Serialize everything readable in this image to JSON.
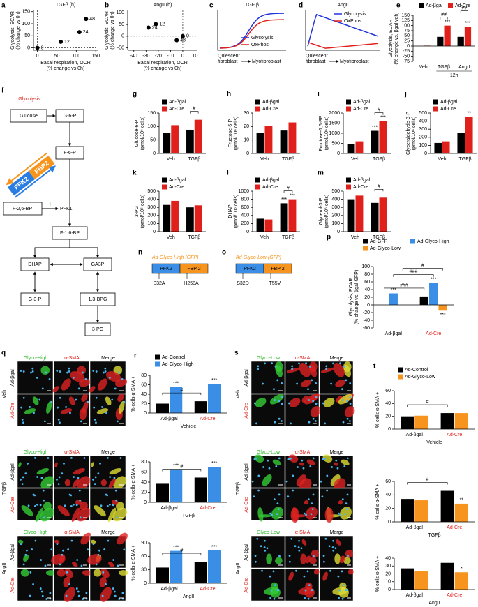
{
  "chart_data": [
    {
      "panel": "a",
      "type": "scatter",
      "title": "TGFβ (h)",
      "x_label": [
        "Basal respiration, OCR",
        "(% change vs 0h)"
      ],
      "y_label": [
        "Glycolysis, ECAR",
        "(% change vs 0h)"
      ],
      "x": [
        0,
        60,
        108,
        125
      ],
      "values": [
        0,
        25,
        65,
        120
      ],
      "point_labels": [
        "0",
        "12",
        "24",
        "48"
      ],
      "color": "#000000",
      "xlim": [
        -10,
        155
      ],
      "xticks": [
        0,
        50,
        100,
        150
      ],
      "ylim": [
        -10,
        155
      ],
      "yticks": [
        0,
        50,
        100,
        150
      ]
    },
    {
      "panel": "b",
      "type": "scatter",
      "title": "AngII (h)",
      "x_label": [
        "Basal respiration, OCR",
        "(% change vs 0h)"
      ],
      "y_label": [
        "Glycolysis, ECAR",
        "(% change vs 0h)"
      ],
      "x": [
        0,
        -22,
        -28,
        -5
      ],
      "values": [
        0,
        52,
        37,
        -17
      ],
      "point_labels": [
        "0",
        "12",
        "24",
        "48"
      ],
      "color": "#000000",
      "xlim": [
        -45,
        12
      ],
      "xticks": [
        -40,
        -30,
        -20,
        -10,
        0,
        10
      ],
      "ylim": [
        -60,
        110
      ],
      "yticks": [
        -50,
        0,
        50,
        100
      ]
    },
    {
      "panel": "c",
      "type": "schematic",
      "title": "TGF β",
      "series": [
        {
          "name": "Glycolysis",
          "color": "#2233dd",
          "trend": "rise"
        },
        {
          "name": "OxPhos",
          "color": "#e0201b",
          "trend": "rise"
        }
      ],
      "x_start": [
        "Quiescent",
        "fibroblast"
      ],
      "x_end": "Myofibroblast"
    },
    {
      "panel": "d",
      "type": "schematic",
      "title": "AngII",
      "series": [
        {
          "name": "Glycolysis",
          "color": "#2233dd",
          "trend": "rise-fall"
        },
        {
          "name": "OxPhos",
          "color": "#e0201b",
          "trend": "dip"
        }
      ],
      "x_start": [
        "Quiescent",
        "fibroblast"
      ],
      "x_end": "Myofibroblast"
    },
    {
      "panel": "e",
      "type": "bar",
      "categories": [
        "Veh",
        "TGFβ",
        "AngII"
      ],
      "category_colors": [
        "#000000",
        "#000000",
        "#000000"
      ],
      "series": [
        {
          "name": "Ad-βgal",
          "color": "#000000",
          "values": [
            0,
            45,
            45
          ]
        },
        {
          "name": "Ad-Cre",
          "color": "#e0201b",
          "values": [
            2,
            100,
            95
          ]
        }
      ],
      "group_label": {
        "text": "12h",
        "categories": [
          1,
          2
        ]
      },
      "y_label": [
        "Glycolysis, ECAR",
        "(% change vs. βgal veh)"
      ],
      "ylim": [
        -75,
        150
      ],
      "yticks": [
        -75,
        -50,
        -25,
        0,
        25,
        50,
        75,
        100,
        125,
        150
      ],
      "annotations": [
        {
          "text": "***",
          "series": 1,
          "category": 1
        },
        {
          "text": "***",
          "series": 1,
          "category": 2
        },
        {
          "text": "##",
          "from": [
            0,
            1
          ],
          "to": [
            1,
            1
          ]
        },
        {
          "text": "##",
          "from": [
            0,
            2
          ],
          "to": [
            1,
            2
          ]
        }
      ]
    },
    {
      "panel": "g",
      "type": "bar",
      "categories": [
        "Veh",
        "TGFβ"
      ],
      "category_colors": [
        "#000000",
        "#000000"
      ],
      "series": [
        {
          "name": "Ad-βgal",
          "color": "#000000",
          "values": [
            75,
            88
          ]
        },
        {
          "name": "Ad-Cre",
          "color": "#e0201b",
          "values": [
            105,
            125
          ]
        }
      ],
      "y_label": [
        "Glucose-6-P",
        "(pmol/10⁶ cells)"
      ],
      "ylim": [
        0,
        150
      ],
      "yticks": [
        0,
        50,
        100,
        150
      ],
      "annotations": [
        {
          "text": "#",
          "from": [
            0,
            1
          ],
          "to": [
            1,
            1
          ]
        }
      ]
    },
    {
      "panel": "h",
      "type": "bar",
      "categories": [
        "Veh",
        "TGFβ"
      ],
      "category_colors": [
        "#000000",
        "#000000"
      ],
      "series": [
        {
          "name": "Ad-βgal",
          "color": "#000000",
          "values": [
            15.5,
            17
          ]
        },
        {
          "name": "Ad-Cre",
          "color": "#e0201b",
          "values": [
            20.5,
            23
          ]
        }
      ],
      "y_label": [
        "Fructose-6-P",
        "(pmol/10⁶ cells)"
      ],
      "ylim": [
        0,
        30
      ],
      "yticks": [
        0,
        10,
        20,
        30
      ],
      "annotations": []
    },
    {
      "panel": "i",
      "type": "bar",
      "categories": [
        "Veh",
        "TGFβ"
      ],
      "category_colors": [
        "#000000",
        "#000000"
      ],
      "series": [
        {
          "name": "Ad-βgal",
          "color": "#000000",
          "values": [
            480,
            1120
          ]
        },
        {
          "name": "Ad-Cre",
          "color": "#e0201b",
          "values": [
            600,
            1600
          ]
        }
      ],
      "y_label": [
        "Fructose-1,6-BP",
        "(pmol/10⁶ cells)"
      ],
      "ylim": [
        0,
        2000
      ],
      "yticks": [
        0,
        500,
        1000,
        1500,
        2000
      ],
      "annotations": [
        {
          "text": "***",
          "series": 0,
          "category": 1
        },
        {
          "text": "***",
          "series": 1,
          "category": 1
        },
        {
          "text": "#",
          "from": [
            0,
            1
          ],
          "to": [
            1,
            1
          ]
        }
      ]
    },
    {
      "panel": "j",
      "type": "bar",
      "categories": [
        "Veh",
        "TGFβ"
      ],
      "category_colors": [
        "#000000",
        "#000000"
      ],
      "series": [
        {
          "name": "Ad-βgal",
          "color": "#000000",
          "values": [
            130,
            250
          ]
        },
        {
          "name": "Ad-Cre",
          "color": "#e0201b",
          "values": [
            150,
            455
          ]
        }
      ],
      "y_label": [
        "Glyceraldehyde-3-P",
        "(pmol/10⁶ cells)"
      ],
      "ylim": [
        0,
        500
      ],
      "yticks": [
        0,
        100,
        200,
        300,
        400,
        500
      ],
      "annotations": [
        {
          "text": "**",
          "series": 1,
          "category": 1
        }
      ]
    },
    {
      "panel": "k",
      "type": "bar",
      "categories": [
        "Veh",
        "TGFβ"
      ],
      "category_colors": [
        "#000000",
        "#000000"
      ],
      "series": [
        {
          "name": "Ad-βgal",
          "color": "#000000",
          "values": [
            330,
            300
          ]
        },
        {
          "name": "Ad-Cre",
          "color": "#e0201b",
          "values": [
            380,
            325
          ]
        }
      ],
      "y_label": [
        "3-PG",
        "(pmol/10⁶ cells)"
      ],
      "ylim": [
        0,
        500
      ],
      "yticks": [
        0,
        100,
        200,
        300,
        400,
        500
      ],
      "annotations": []
    },
    {
      "panel": "l",
      "type": "bar",
      "categories": [
        "Veh",
        "TGFβ"
      ],
      "category_colors": [
        "#000000",
        "#000000"
      ],
      "series": [
        {
          "name": "Ad-βgal",
          "color": "#000000",
          "values": [
            320,
            700
          ]
        },
        {
          "name": "Ad-Cre",
          "color": "#e0201b",
          "values": [
            300,
            800
          ]
        }
      ],
      "y_label": [
        "DHAP",
        "(pmol/10⁶ cells)"
      ],
      "ylim": [
        0,
        1000
      ],
      "yticks": [
        0,
        200,
        400,
        600,
        800,
        1000
      ],
      "annotations": [
        {
          "text": "***",
          "series": 0,
          "category": 1
        },
        {
          "text": "***",
          "series": 1,
          "category": 1
        },
        {
          "text": "#",
          "from": [
            0,
            1
          ],
          "to": [
            1,
            1
          ]
        }
      ]
    },
    {
      "panel": "m",
      "type": "bar",
      "categories": [
        "Veh",
        "TGFβ"
      ],
      "category_colors": [
        "#000000",
        "#000000"
      ],
      "series": [
        {
          "name": "Ad-βgal",
          "color": "#000000",
          "values": [
            400,
            355
          ]
        },
        {
          "name": "Ad-Cre",
          "color": "#e0201b",
          "values": [
            445,
            420
          ]
        }
      ],
      "y_label": [
        "Glycerol-3-P",
        "(pmol/10⁶ cells)"
      ],
      "ylim": [
        0,
        500
      ],
      "yticks": [
        0,
        100,
        200,
        300,
        400,
        500
      ],
      "annotations": [
        {
          "text": "#",
          "from": [
            0,
            1
          ],
          "to": [
            1,
            1
          ]
        }
      ]
    },
    {
      "panel": "p",
      "type": "bar",
      "categories": [
        "Ad-βgal",
        "Ad-Cre"
      ],
      "category_colors": [
        "#000000",
        "#e0201b"
      ],
      "series": [
        {
          "name": "Ad-GFP",
          "color": "#000000",
          "values": [
            0,
            22
          ]
        },
        {
          "name": "Ad-Glyco-High",
          "color": "#3a8ee6",
          "values": [
            30,
            57
          ]
        },
        {
          "name": "Ad-Glyco-Low",
          "color": "#f7941d",
          "values": [
            0,
            -15
          ]
        }
      ],
      "y_label": [
        "Glycolysis, ECAR",
        "(% change vs. βgal GFP)"
      ],
      "ylim": [
        -60,
        100
      ],
      "yticks": [
        -60,
        -40,
        -20,
        0,
        20,
        40,
        60,
        80,
        100
      ],
      "annotations": [
        {
          "text": "***",
          "series": 1,
          "category": 0
        },
        {
          "text": "***",
          "series": 1,
          "category": 1
        },
        {
          "text": "***",
          "series": 2,
          "category": 1
        },
        {
          "text": "###",
          "from": [
            0,
            0
          ],
          "to": [
            0,
            1
          ]
        },
        {
          "text": "###",
          "from": [
            1,
            0
          ],
          "to": [
            1,
            1
          ]
        },
        {
          "text": "#",
          "from": [
            2,
            0
          ],
          "to": [
            2,
            1
          ]
        }
      ]
    },
    {
      "panel": "r",
      "type": "bar",
      "categories": [
        "Ad-βgal",
        "Ad-Cre"
      ],
      "category_colors": [
        "#000000",
        "#e0201b"
      ],
      "series": [
        {
          "name": "Ad-Control",
          "color": "#000000",
          "values": [
            20,
            25
          ]
        },
        {
          "name": "Ad-Glyco-High",
          "color": "#3a8ee6",
          "values": [
            55,
            62
          ]
        }
      ],
      "x_label": "Vehicle",
      "y_label": [
        "% cells α-SMA +"
      ],
      "ylim": [
        0,
        80
      ],
      "yticks": [
        0,
        20,
        40,
        60,
        80
      ],
      "annotations": [
        {
          "text": "***",
          "series": 1,
          "category": 0
        },
        {
          "text": "***",
          "series": 1,
          "category": 1
        },
        {
          "text": "#",
          "from": [
            0,
            0
          ],
          "to": [
            0,
            1
          ]
        }
      ]
    },
    {
      "type": "bar",
      "categories": [
        "Ad-βgal",
        "Ad-Cre"
      ],
      "category_colors": [
        "#000000",
        "#e0201b"
      ],
      "series": [
        {
          "color": "#000000",
          "values": [
            38,
            49
          ]
        },
        {
          "color": "#3a8ee6",
          "values": [
            65,
            70
          ]
        }
      ],
      "x_label": "TGFβ",
      "y_label": [
        "% cells α-SMA +"
      ],
      "ylim": [
        0,
        80
      ],
      "yticks": [
        0,
        20,
        40,
        60,
        80
      ],
      "annotations": [
        {
          "text": "***",
          "series": 1,
          "category": 0
        },
        {
          "text": "***",
          "series": 1,
          "category": 1
        },
        {
          "text": "#",
          "from": [
            0,
            0
          ],
          "to": [
            0,
            1
          ]
        }
      ]
    },
    {
      "type": "bar",
      "categories": [
        "Ad-βgal",
        "Ad-Cre"
      ],
      "category_colors": [
        "#000000",
        "#e0201b"
      ],
      "series": [
        {
          "color": "#000000",
          "values": [
            35,
            48
          ]
        },
        {
          "color": "#3a8ee6",
          "values": [
            72,
            73
          ]
        }
      ],
      "x_label": "AngII",
      "y_label": [
        "% cells α-SMA +"
      ],
      "ylim": [
        0,
        90
      ],
      "yticks": [
        0,
        30,
        60,
        90
      ],
      "annotations": [
        {
          "text": "***",
          "series": 1,
          "category": 0
        },
        {
          "text": "***",
          "series": 1,
          "category": 1
        },
        {
          "text": "#",
          "from": [
            0,
            0
          ],
          "to": [
            0,
            1
          ]
        }
      ]
    },
    {
      "panel": "t",
      "type": "bar",
      "categories": [
        "Ad-βgal",
        "Ad-Cre"
      ],
      "category_colors": [
        "#000000",
        "#e0201b"
      ],
      "series": [
        {
          "name": "Ad-Control",
          "color": "#000000",
          "values": [
            20,
            25
          ]
        },
        {
          "name": "Ad-Glyco-Low",
          "color": "#f7941d",
          "values": [
            21,
            25
          ]
        }
      ],
      "x_label": "Vehicle",
      "y_label": [
        "% cells α-SMA +"
      ],
      "ylim": [
        0,
        60
      ],
      "yticks": [
        0,
        20,
        40,
        60
      ],
      "annotations": [
        {
          "text": "#",
          "from": [
            0,
            0
          ],
          "to": [
            0,
            1
          ]
        }
      ]
    },
    {
      "type": "bar",
      "categories": [
        "Ad-βgal",
        "Ad-Cre"
      ],
      "category_colors": [
        "#000000",
        "#e0201b"
      ],
      "series": [
        {
          "color": "#000000",
          "values": [
            34,
            46
          ]
        },
        {
          "color": "#f7941d",
          "values": [
            32,
            27
          ]
        }
      ],
      "x_label": "TGFβ",
      "y_label": [
        "% cells α-SMA +"
      ],
      "ylim": [
        0,
        60
      ],
      "yticks": [
        0,
        20,
        40,
        60
      ],
      "annotations": [
        {
          "text": "**",
          "series": 1,
          "category": 1
        },
        {
          "text": "#",
          "from": [
            0,
            0
          ],
          "to": [
            0,
            1
          ]
        }
      ]
    },
    {
      "type": "bar",
      "categories": [
        "Ad-βgal",
        "Ad-Cre"
      ],
      "category_colors": [
        "#000000",
        "#e0201b"
      ],
      "series": [
        {
          "color": "#000000",
          "values": [
            27,
            34
          ]
        },
        {
          "color": "#f7941d",
          "values": [
            24,
            22
          ]
        }
      ],
      "x_label": "AngII",
      "y_label": [
        "% cells α-SMA +"
      ],
      "ylim": [
        0,
        40
      ],
      "yticks": [
        0,
        10,
        20,
        30,
        40
      ],
      "annotations": [
        {
          "text": "*",
          "series": 1,
          "category": 1
        }
      ]
    }
  ],
  "diagram": {
    "panel": "f",
    "title": "Glycolysis",
    "nodes": [
      "Glucose",
      "G-6-P",
      "F-6-P",
      "PFK2",
      "FBP2",
      "F-2,6-BP",
      "+",
      "PFK1",
      "F-1,6-BP",
      "DHAP",
      "GA3P",
      "G-3-P",
      "1,3-BPG",
      "3-PG"
    ]
  },
  "constructs": [
    {
      "panel": "n",
      "title": "Ad-Glyco-High (GFP)",
      "domains": [
        "PFK2",
        "FBP 2"
      ],
      "mutations": [
        "S32A",
        "H258A"
      ]
    },
    {
      "panel": "o",
      "title": "Ad-Glyco-Low (GFP)",
      "domains": [
        "PFK2",
        "FBP 2"
      ],
      "mutations": [
        "S32D",
        "T55V"
      ]
    }
  ],
  "micrographs": [
    {
      "panel": "q",
      "channels": [
        "Glyco-High",
        "α-SMA",
        "Merge"
      ],
      "rows": [
        "Ad-βgal",
        "Ad-Cre"
      ],
      "conditions": [
        "Veh",
        "TGFβ",
        "AngII"
      ]
    },
    {
      "panel": "s",
      "channels": [
        "Glyco-Low",
        "α-SMA",
        "Merge"
      ],
      "rows": [
        "Ad-βgal",
        "Ad-Cre"
      ],
      "conditions": [
        "Veh",
        "TGFβ",
        "AngII"
      ]
    }
  ]
}
